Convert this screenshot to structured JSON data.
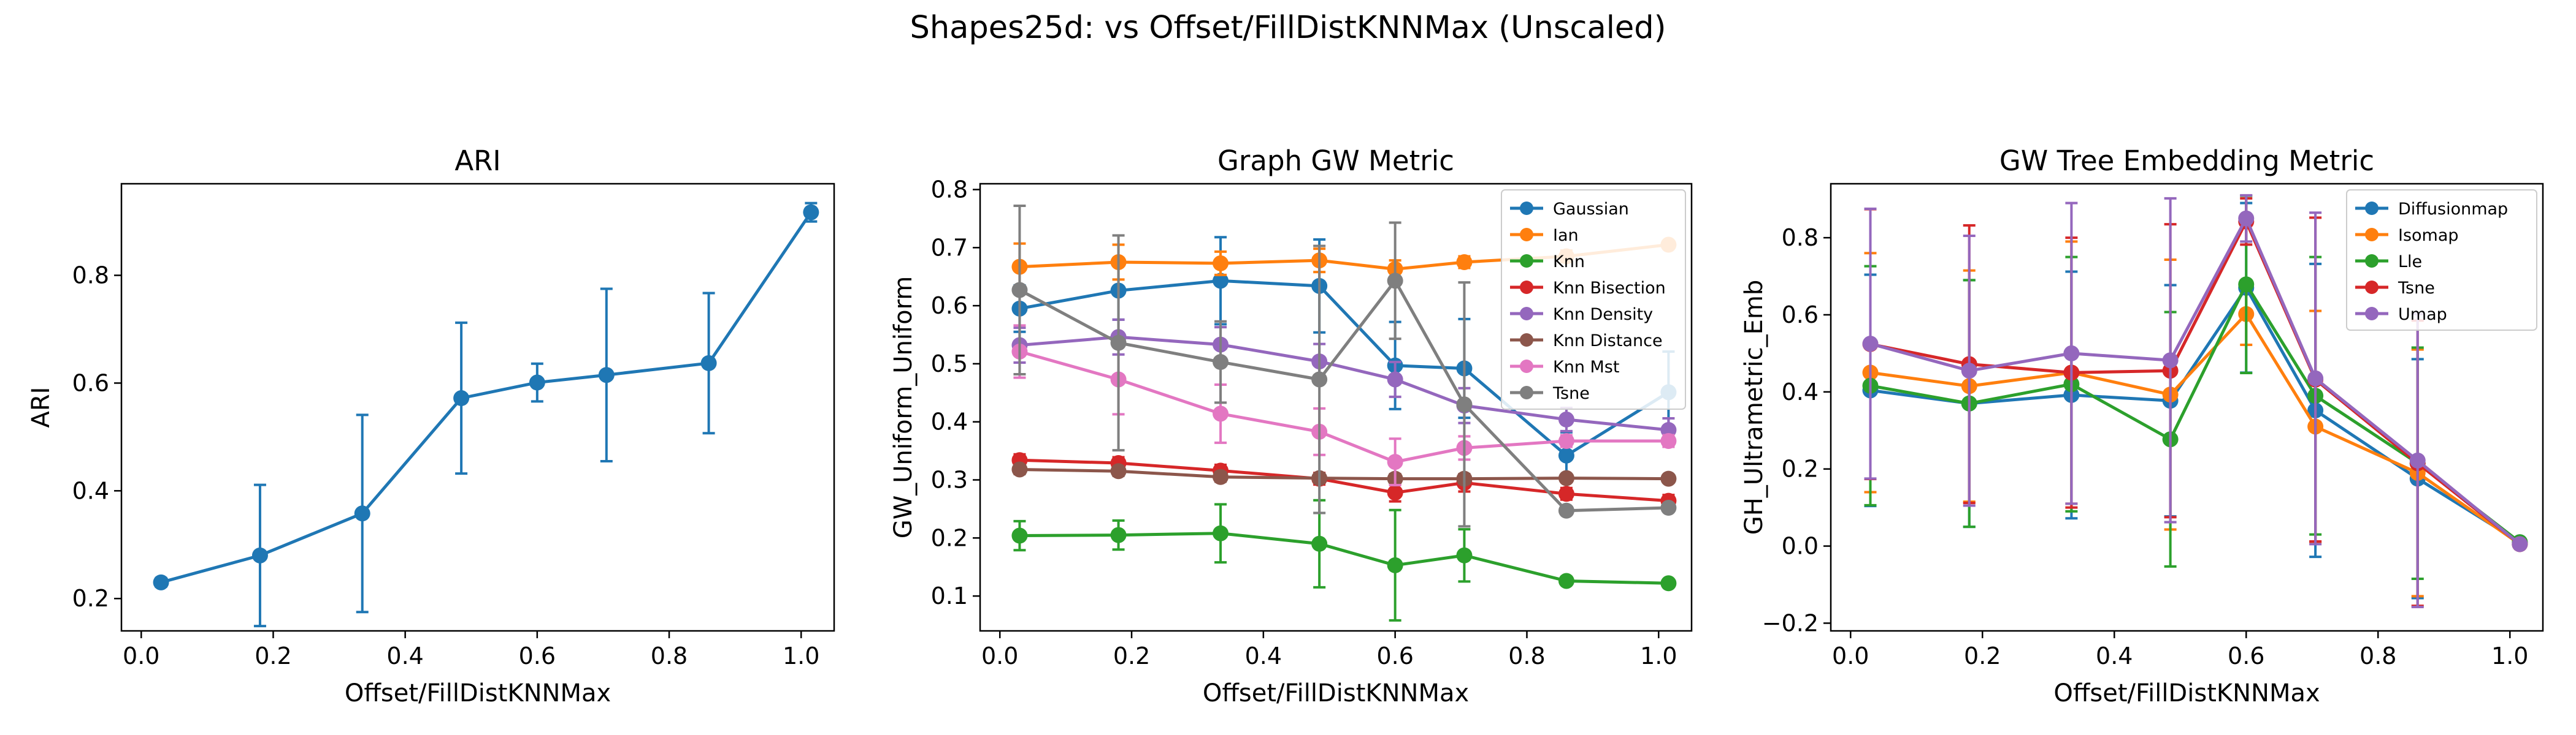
{
  "figure_title": "Shapes25d: vs Offset/FillDistKNNMax (Unscaled)",
  "colors": {
    "blue": "#1f77b4",
    "orange": "#ff7f0e",
    "green": "#2ca02c",
    "red": "#d62728",
    "purple": "#9467bd",
    "brown": "#8c564b",
    "pink": "#e377c2",
    "gray": "#7f7f7f"
  },
  "chart_data": [
    {
      "type": "line",
      "title": "ARI",
      "xlabel": "Offset/FillDistKNNMax",
      "ylabel": "ARI",
      "xlim": [
        -0.03,
        1.05
      ],
      "ylim": [
        0.14,
        0.97
      ],
      "xticks": [
        0.0,
        0.2,
        0.4,
        0.6,
        0.8,
        1.0
      ],
      "yticks": [
        0.2,
        0.4,
        0.6,
        0.8
      ],
      "x": [
        0.03,
        0.18,
        0.335,
        0.485,
        0.6,
        0.705,
        0.86,
        1.015
      ],
      "legend": null,
      "series": [
        {
          "color": "#1f77b4",
          "values": [
            0.23,
            0.28,
            0.358,
            0.572,
            0.601,
            0.615,
            0.637,
            0.917
          ],
          "err": [
            0.008,
            0.131,
            0.183,
            0.14,
            0.035,
            0.16,
            0.13,
            0.017
          ]
        }
      ]
    },
    {
      "type": "line",
      "title": "Graph GW Metric",
      "xlabel": "Offset/FillDistKNNMax",
      "ylabel": "GW_Uniform_Uniform",
      "xlim": [
        -0.03,
        1.05
      ],
      "ylim": [
        0.04,
        0.81
      ],
      "xticks": [
        0.0,
        0.2,
        0.4,
        0.6,
        0.8,
        1.0
      ],
      "yticks": [
        0.1,
        0.2,
        0.3,
        0.4,
        0.5,
        0.6,
        0.7,
        0.8
      ],
      "x": [
        0.03,
        0.18,
        0.335,
        0.485,
        0.6,
        0.705,
        0.86,
        1.015
      ],
      "legend": "top-right",
      "series": [
        {
          "name": "Gaussian",
          "color": "#1f77b4",
          "values": [
            0.595,
            0.626,
            0.643,
            0.634,
            0.497,
            0.492,
            0.342,
            0.451
          ],
          "err": [
            0.04,
            0.05,
            0.075,
            0.08,
            0.075,
            0.085,
            0.04,
            0.07
          ]
        },
        {
          "name": "Ian",
          "color": "#ff7f0e",
          "values": [
            0.667,
            0.675,
            0.673,
            0.678,
            0.663,
            0.675,
            0.685,
            0.705
          ],
          "err": [
            0.04,
            0.03,
            0.02,
            0.02,
            0.015,
            0.01,
            0.01,
            0.005
          ]
        },
        {
          "name": "Knn",
          "color": "#2ca02c",
          "values": [
            0.204,
            0.205,
            0.208,
            0.19,
            0.153,
            0.17,
            0.126,
            0.122
          ],
          "err": [
            0.025,
            0.025,
            0.05,
            0.075,
            0.095,
            0.045,
            0.005,
            0.005
          ]
        },
        {
          "name": "Knn Bisection",
          "color": "#d62728",
          "values": [
            0.334,
            0.329,
            0.316,
            0.302,
            0.278,
            0.295,
            0.276,
            0.264
          ],
          "err": [
            0.01,
            0.01,
            0.01,
            0.01,
            0.015,
            0.015,
            0.01,
            0.01
          ]
        },
        {
          "name": "Knn Density",
          "color": "#9467bd",
          "values": [
            0.532,
            0.546,
            0.533,
            0.504,
            0.473,
            0.428,
            0.404,
            0.386
          ],
          "err": [
            0.03,
            0.03,
            0.03,
            0.03,
            0.03,
            0.03,
            0.02,
            0.02
          ]
        },
        {
          "name": "Knn Distance",
          "color": "#8c564b",
          "values": [
            0.318,
            0.315,
            0.305,
            0.303,
            0.302,
            0.302,
            0.303,
            0.302
          ],
          "err": [
            0.008,
            0.008,
            0.008,
            0.008,
            0.008,
            0.008,
            0.005,
            0.005
          ]
        },
        {
          "name": "Knn Mst",
          "color": "#e377c2",
          "values": [
            0.521,
            0.473,
            0.414,
            0.383,
            0.331,
            0.355,
            0.367,
            0.367
          ],
          "err": [
            0.045,
            0.06,
            0.05,
            0.04,
            0.04,
            0.02,
            0.01,
            0.01
          ]
        },
        {
          "name": "Tsne",
          "color": "#7f7f7f",
          "values": [
            0.627,
            0.536,
            0.503,
            0.473,
            0.643,
            0.43,
            0.247,
            0.252
          ],
          "err": [
            0.145,
            0.185,
            0.07,
            0.23,
            0.1,
            0.21,
            0.005,
            0.005
          ]
        }
      ]
    },
    {
      "type": "line",
      "title": "GW Tree Embedding Metric",
      "xlabel": "Offset/FillDistKNNMax",
      "ylabel": "GH_Ultrametric_Emb",
      "xlim": [
        -0.03,
        1.05
      ],
      "ylim": [
        -0.22,
        0.94
      ],
      "xticks": [
        0.0,
        0.2,
        0.4,
        0.6,
        0.8,
        1.0
      ],
      "yticks": [
        -0.2,
        0.0,
        0.2,
        0.4,
        0.6,
        0.8
      ],
      "x": [
        0.03,
        0.18,
        0.335,
        0.485,
        0.6,
        0.705,
        0.86,
        1.015
      ],
      "legend": "top-right",
      "series": [
        {
          "name": "Diffusionmap",
          "color": "#1f77b4",
          "values": [
            0.404,
            0.37,
            0.392,
            0.377,
            0.67,
            0.352,
            0.175,
            0.01
          ],
          "err": [
            0.3,
            0.32,
            0.32,
            0.3,
            0.22,
            0.38,
            0.31,
            0.005
          ]
        },
        {
          "name": "Isomap",
          "color": "#ff7f0e",
          "values": [
            0.45,
            0.415,
            0.45,
            0.393,
            0.602,
            0.31,
            0.19,
            0.005
          ],
          "err": [
            0.31,
            0.3,
            0.34,
            0.35,
            0.08,
            0.3,
            0.32,
            0.005
          ]
        },
        {
          "name": "Lle",
          "color": "#2ca02c",
          "values": [
            0.416,
            0.37,
            0.42,
            0.277,
            0.679,
            0.39,
            0.215,
            0.01
          ],
          "err": [
            0.31,
            0.32,
            0.33,
            0.33,
            0.23,
            0.36,
            0.3,
            0.005
          ]
        },
        {
          "name": "Tsne",
          "color": "#d62728",
          "values": [
            0.524,
            0.472,
            0.45,
            0.455,
            0.842,
            0.432,
            0.215,
            0.005
          ],
          "err": [
            0.35,
            0.36,
            0.35,
            0.38,
            0.06,
            0.42,
            0.37,
            0.005
          ]
        },
        {
          "name": "Umap",
          "color": "#9467bd",
          "values": [
            0.525,
            0.455,
            0.5,
            0.482,
            0.85,
            0.435,
            0.222,
            0.005
          ],
          "err": [
            0.35,
            0.35,
            0.39,
            0.42,
            0.06,
            0.43,
            0.38,
            0.005
          ]
        }
      ]
    }
  ]
}
